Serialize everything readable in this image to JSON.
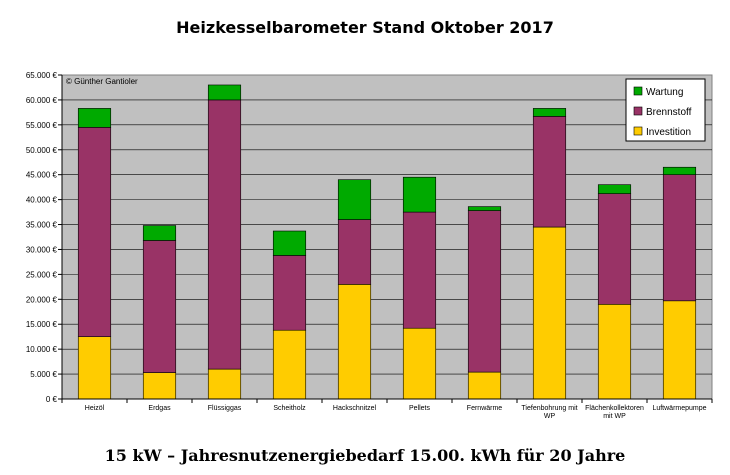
{
  "title": "Heizkesselbarometer Stand Oktober 2017",
  "subtitle": "15 kW – Jahresnutzenergiebedarf 15.00. kWh für 20 Jahre",
  "copyright": "© Günther Gantioler",
  "chart_data": {
    "type": "bar",
    "stacked": true,
    "categories": [
      [
        "Heizöl"
      ],
      [
        "Erdgas"
      ],
      [
        "Flüssiggas"
      ],
      [
        "Scheitholz"
      ],
      [
        "Hackschnitzel"
      ],
      [
        "Pellets"
      ],
      [
        "Fernwärme"
      ],
      [
        "Tiefenbohrung mit",
        "WP"
      ],
      [
        "Flächenkollektoren",
        "mit WP"
      ],
      [
        "Luftwärmepumpe"
      ]
    ],
    "series": [
      {
        "name": "Investition",
        "color": "#FFCC00",
        "values": [
          12500,
          5300,
          6000,
          13800,
          23000,
          14200,
          5400,
          34500,
          19000,
          19700
        ]
      },
      {
        "name": "Brennstoff",
        "color": "#993366",
        "values": [
          42000,
          26500,
          54000,
          15000,
          13000,
          23300,
          32400,
          22200,
          22200,
          25300
        ]
      },
      {
        "name": "Wartung",
        "color": "#00AA00",
        "values": [
          3800,
          3000,
          3000,
          4900,
          8000,
          7000,
          800,
          1600,
          1800,
          1500
        ]
      }
    ],
    "legend_order": [
      "Wartung",
      "Brennstoff",
      "Investition"
    ],
    "legend_position": "top-right",
    "ylim": [
      0,
      65000
    ],
    "ytick_step": 5000,
    "ytick_labels": [
      "0 €",
      "5.000 €",
      "10.000 €",
      "15.000 €",
      "20.000 €",
      "25.000 €",
      "30.000 €",
      "35.000 €",
      "40.000 €",
      "45.000 €",
      "50.000 €",
      "55.000 €",
      "60.000 €",
      "65.000 €"
    ],
    "grid": true,
    "plot_background": "#C0C0C0",
    "xlabel": "",
    "ylabel": ""
  }
}
